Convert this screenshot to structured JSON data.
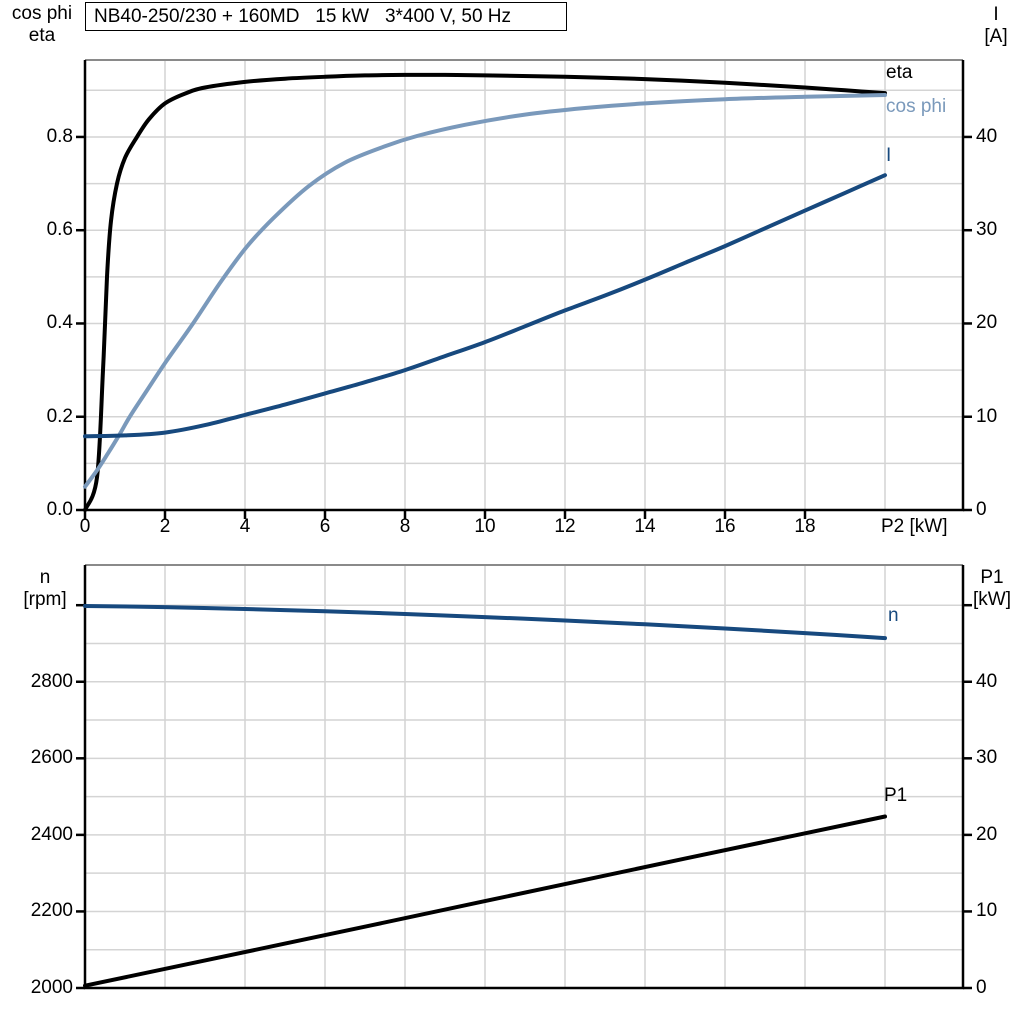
{
  "title": "NB40-250/230 + 160MD   15 kW   3*400 V, 50 Hz",
  "colors": {
    "black": "#000000",
    "light_blue": "#7a99bb",
    "dark_blue": "#17497e",
    "grid": "#d4d4d4",
    "spine": "#000000",
    "spine_top": "#8a8a8a",
    "background": "#ffffff"
  },
  "chart_data": [
    {
      "type": "line",
      "title": "Motor efficiency, power factor and current vs shaft power",
      "xlabel": "P2 [kW]",
      "xlim": [
        0,
        21.95
      ],
      "x_grid": [
        2,
        4,
        6,
        8,
        10,
        12,
        14,
        16,
        18,
        20
      ],
      "x_ticks": {
        "values": [
          0,
          2,
          4,
          6,
          8,
          10,
          12,
          14,
          16,
          18
        ],
        "labels": [
          "0",
          "2",
          "4",
          "6",
          "8",
          "10",
          "12",
          "14",
          "16",
          "18"
        ]
      },
      "left_axis": {
        "label_line1": "cos phi",
        "label_line2": "eta",
        "lim": [
          0,
          0.965
        ],
        "grid": [
          0.1,
          0.2,
          0.3,
          0.4,
          0.5,
          0.6,
          0.7,
          0.8,
          0.9
        ],
        "ticks": {
          "values": [
            0,
            0.2,
            0.4,
            0.6,
            0.8
          ],
          "labels": [
            "0.0",
            "0.2",
            "0.4",
            "0.6",
            "0.8"
          ]
        }
      },
      "right_axis": {
        "label_line1": "I",
        "label_line2": "[A]",
        "lim": [
          0,
          48.25
        ],
        "grid": [],
        "ticks": {
          "values": [
            0,
            10,
            20,
            30,
            40
          ],
          "labels": [
            "0",
            "10",
            "20",
            "30",
            "40"
          ]
        }
      },
      "legend_position": "right-of-curves",
      "series": [
        {
          "name": "eta",
          "axis": "left",
          "color_key": "black",
          "x": [
            0,
            0.3,
            0.45,
            0.55,
            0.65,
            0.8,
            1.0,
            1.3,
            1.6,
            2.0,
            2.5,
            3.0,
            4.0,
            5.0,
            6.0,
            7.0,
            8.0,
            9.0,
            10.0,
            12.0,
            14.0,
            16.0,
            18.0,
            19.0,
            20.0
          ],
          "y": [
            0,
            0.07,
            0.3,
            0.5,
            0.62,
            0.7,
            0.755,
            0.8,
            0.838,
            0.872,
            0.893,
            0.906,
            0.918,
            0.925,
            0.929,
            0.932,
            0.933,
            0.933,
            0.932,
            0.929,
            0.924,
            0.916,
            0.906,
            0.9,
            0.894
          ]
        },
        {
          "name": "cos phi",
          "axis": "left",
          "color_key": "light_blue",
          "x": [
            0,
            0.3,
            0.6,
            0.85,
            1.12,
            1.5,
            2.0,
            2.7,
            3.4,
            4.05,
            4.7,
            5.6,
            6.5,
            7.5,
            8.3,
            9.5,
            11.0,
            12.5,
            14.0,
            16.0,
            18.0,
            20.0
          ],
          "y": [
            0.05,
            0.085,
            0.125,
            0.16,
            0.2,
            0.25,
            0.315,
            0.4,
            0.49,
            0.565,
            0.625,
            0.695,
            0.745,
            0.78,
            0.802,
            0.826,
            0.848,
            0.862,
            0.872,
            0.881,
            0.886,
            0.89
          ]
        },
        {
          "name": "I",
          "axis": "right",
          "color_key": "dark_blue",
          "x": [
            0,
            1,
            2,
            3,
            4,
            5,
            6,
            7,
            8,
            9,
            10,
            11,
            12,
            13,
            14,
            15,
            16,
            17,
            18,
            19,
            20
          ],
          "y": [
            7.9,
            8.0,
            8.3,
            9.1,
            10.2,
            11.3,
            12.5,
            13.7,
            15.0,
            16.5,
            18.0,
            19.7,
            21.4,
            23.0,
            24.7,
            26.5,
            28.3,
            30.2,
            32.1,
            34.0,
            35.9
          ]
        }
      ]
    },
    {
      "type": "line",
      "title": "Motor speed and input power vs shaft power",
      "xlabel": "",
      "xlim": [
        0,
        21.95
      ],
      "x_grid": [
        2,
        4,
        6,
        8,
        10,
        12,
        14,
        16,
        18,
        20
      ],
      "x_ticks": {
        "values": [],
        "labels": []
      },
      "left_axis": {
        "label_line1": "n",
        "label_line2": "[rpm]",
        "lim": [
          2000,
          3105
        ],
        "grid": [
          2100,
          2200,
          2300,
          2400,
          2500,
          2600,
          2700,
          2800,
          2900,
          3000
        ],
        "ticks": {
          "values": [
            2000,
            2200,
            2400,
            2600,
            2800,
            3000
          ],
          "labels": [
            "2000",
            "2200",
            "2400",
            "2600",
            "2800",
            ""
          ]
        }
      },
      "right_axis": {
        "label_line1": "P1",
        "label_line2": "[kW]",
        "lim": [
          0,
          55.25
        ],
        "grid": [],
        "ticks": {
          "values": [
            0,
            10,
            20,
            30,
            40,
            50
          ],
          "labels": [
            "0",
            "10",
            "20",
            "30",
            "40",
            ""
          ]
        }
      },
      "legend_position": "right-of-curves",
      "series": [
        {
          "name": "n",
          "axis": "left",
          "color_key": "dark_blue",
          "x": [
            0,
            2,
            4,
            6,
            8,
            10,
            12,
            14,
            16,
            18,
            20
          ],
          "y": [
            2998,
            2995,
            2990,
            2984,
            2977,
            2969,
            2960,
            2950,
            2939,
            2927,
            2914
          ]
        },
        {
          "name": "P1",
          "axis": "right",
          "color_key": "black",
          "x": [
            0,
            5,
            10,
            15,
            20
          ],
          "y": [
            0.3,
            5.8,
            11.35,
            16.9,
            22.4
          ]
        }
      ]
    }
  ]
}
